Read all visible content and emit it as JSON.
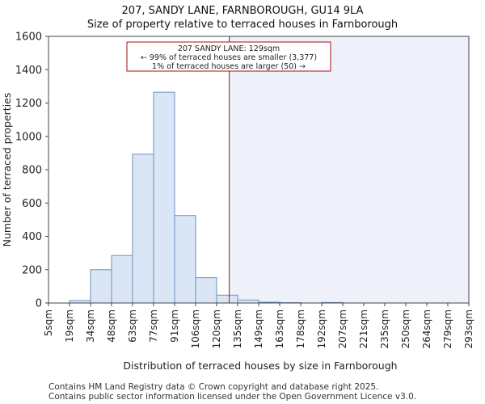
{
  "header": {
    "title": "207, SANDY LANE, FARNBOROUGH, GU14 9LA",
    "subtitle": "Size of property relative to terraced houses in Farnborough"
  },
  "footer": {
    "line1": "Contains HM Land Registry data © Crown copyright and database right 2025.",
    "line2": "Contains public sector information licensed under the Open Government Licence v3.0."
  },
  "colors": {
    "bar_fill": "#dae6f5",
    "bar_stroke": "#6a8fc0",
    "highlight_region": "#eef1fa",
    "marker_line": "#aa1111",
    "grid": "#e5e5e5",
    "axis": "#444444"
  },
  "chart_data": {
    "type": "bar",
    "title": "207, SANDY LANE, FARNBOROUGH, GU14 9LA",
    "subtitle": "Size of property relative to terraced houses in Farnborough",
    "xlabel": "Distribution of terraced houses by size in Farnborough",
    "ylabel": "Number of terraced properties",
    "ylim": [
      0,
      1600
    ],
    "yticks": [
      0,
      200,
      400,
      600,
      800,
      1000,
      1200,
      1400,
      1600
    ],
    "x_tick_labels": [
      "5sqm",
      "19sqm",
      "34sqm",
      "48sqm",
      "63sqm",
      "77sqm",
      "91sqm",
      "106sqm",
      "120sqm",
      "135sqm",
      "149sqm",
      "163sqm",
      "178sqm",
      "192sqm",
      "207sqm",
      "221sqm",
      "235sqm",
      "250sqm",
      "264sqm",
      "279sqm",
      "293sqm"
    ],
    "values": [
      0,
      15,
      200,
      285,
      893,
      1265,
      525,
      152,
      47,
      18,
      5,
      2,
      0,
      3,
      0,
      0,
      0,
      0,
      0,
      0
    ],
    "grid": false,
    "property": {
      "size_sqm": 129,
      "bin_position": 8.6,
      "annotation": [
        "207 SANDY LANE: 129sqm",
        "← 99% of terraced houses are smaller (3,377)",
        "1% of terraced houses are larger (50) →"
      ]
    }
  }
}
